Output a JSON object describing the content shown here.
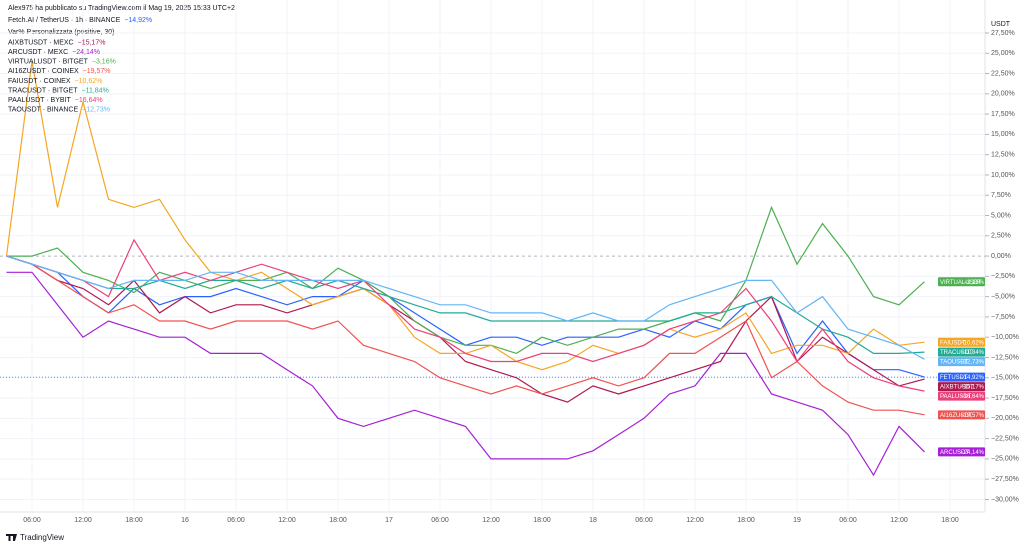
{
  "header": {
    "author": "Alex975 ha pubblicato su TradingView.com il Mag 19, 2025 15:33 UTC+2",
    "indicator": "Var% Personalizzata (positive, 30)",
    "currency": "USDT",
    "brand": "TradingView"
  },
  "chart_data": {
    "type": "line",
    "categories": [
      null,
      "06:00",
      null,
      "12:00",
      null,
      "18:00",
      null,
      "16",
      null,
      "06:00",
      null,
      "12:00",
      null,
      "18:00",
      null,
      "17",
      null,
      "06:00",
      null,
      "12:00",
      null,
      "18:00",
      null,
      "18",
      null,
      "06:00",
      null,
      "12:00",
      null,
      "18:00",
      null,
      "19",
      null,
      "06:00",
      null,
      "12:00",
      null,
      "18:00"
    ],
    "ylim": [
      -31.3,
      29.1
    ],
    "yticks": [
      {
        "value": 27.5,
        "label": "27,50%"
      },
      {
        "value": 25,
        "label": "25,00%"
      },
      {
        "value": 22.5,
        "label": "22,50%"
      },
      {
        "value": 20,
        "label": "20,00%"
      },
      {
        "value": 17.5,
        "label": "17,50%"
      },
      {
        "value": 15,
        "label": "15,00%"
      },
      {
        "value": 12.5,
        "label": "12,50%"
      },
      {
        "value": 10,
        "label": "10,00%"
      },
      {
        "value": 7.5,
        "label": "7,50%"
      },
      {
        "value": 5,
        "label": "5,00%"
      },
      {
        "value": 2.5,
        "label": "2,50%"
      },
      {
        "value": 0,
        "label": "0,00%"
      },
      {
        "value": -2.5,
        "label": "−2,50%"
      },
      {
        "value": -5,
        "label": "−5,00%"
      },
      {
        "value": -7.5,
        "label": "−7,50%"
      },
      {
        "value": -10,
        "label": "−10,00%"
      },
      {
        "value": -12.5,
        "label": "−12,50%"
      },
      {
        "value": -15,
        "label": "−15,00%"
      },
      {
        "value": -17.5,
        "label": "−17,50%"
      },
      {
        "value": -20,
        "label": "−20,00%"
      },
      {
        "value": -22.5,
        "label": "−22,50%"
      },
      {
        "value": -25,
        "label": "−25,00%"
      },
      {
        "value": -27.5,
        "label": "−27,50%"
      },
      {
        "value": -30,
        "label": "−30,00%"
      }
    ],
    "series": [
      {
        "name": "Fetch.AI / TetherUS · 1h · BINANCE",
        "tag": "FETUSDT",
        "color": "#2962ff",
        "values": [
          0,
          -1,
          -2,
          -5,
          -7,
          -4,
          -6,
          -5,
          -5,
          -4,
          -5,
          -6,
          -5,
          -5,
          -3,
          -5,
          -7,
          -9,
          -11,
          -10,
          -10,
          -11,
          -10,
          -10,
          -10,
          -9,
          -10,
          -8,
          -9,
          -6,
          -5,
          -12,
          -8,
          -12,
          -14,
          -14,
          -14.92,
          null
        ],
        "value_labels": [
          null,
          null,
          null,
          null,
          null,
          null,
          null,
          null,
          null,
          null,
          null,
          null,
          null,
          null,
          null,
          null,
          null,
          null,
          null,
          null,
          null,
          null,
          null,
          null,
          null,
          null,
          null,
          null,
          null,
          null,
          null,
          null,
          null,
          null,
          null,
          null,
          "−14,92%",
          null
        ]
      },
      {
        "name": "AIXBTUSDT · MEXC",
        "tag": "AIXBTUSDT",
        "color": "#b0174f",
        "values": [
          0,
          -1,
          -3,
          -4,
          -6,
          -3,
          -7,
          -5,
          -7,
          -6,
          -6,
          -7,
          -6,
          -5,
          -4,
          -6,
          -8,
          -10,
          -13,
          -14,
          -15,
          -17,
          -18,
          -16,
          -17,
          -16,
          -15,
          -14,
          -13,
          -8,
          -5,
          -13,
          -10,
          -12,
          -14,
          -16,
          -15.17,
          null
        ],
        "value_labels": [
          null,
          null,
          null,
          null,
          null,
          null,
          null,
          null,
          null,
          null,
          null,
          null,
          null,
          null,
          null,
          null,
          null,
          null,
          null,
          null,
          null,
          null,
          null,
          null,
          null,
          null,
          null,
          null,
          null,
          null,
          null,
          null,
          null,
          null,
          null,
          null,
          "−15,17%",
          null
        ]
      },
      {
        "name": "ARCUSDT · MEXC",
        "tag": "ARCUSDT",
        "color": "#a61fd6",
        "values": [
          -2,
          -2,
          -6,
          -10,
          -8,
          -9,
          -10,
          -10,
          -12,
          -12,
          -12,
          -14,
          -16,
          -20,
          -21,
          -20,
          -19,
          -20,
          -21,
          -25,
          -25,
          -25,
          -25,
          -24,
          -22,
          -20,
          -17,
          -16,
          -12,
          -12,
          -17,
          -18,
          -19,
          -22,
          -27,
          -21,
          -24.14,
          null
        ],
        "value_labels": [
          null,
          null,
          null,
          null,
          null,
          null,
          null,
          null,
          null,
          null,
          null,
          null,
          null,
          null,
          null,
          null,
          null,
          null,
          null,
          null,
          null,
          null,
          null,
          null,
          null,
          null,
          null,
          null,
          null,
          null,
          null,
          null,
          null,
          null,
          null,
          null,
          "−24,14%",
          null
        ]
      },
      {
        "name": "VIRTUALUSDT · BITGET",
        "tag": "VIRTUALUSDT",
        "color": "#4caf50",
        "values": [
          0,
          0,
          1,
          -2,
          -3,
          -4.5,
          -2,
          -3,
          -4,
          -3,
          -3,
          -2,
          -4,
          -1.5,
          -3,
          -5,
          -8,
          -10,
          -11,
          -11,
          -12,
          -10,
          -11,
          -10,
          -9,
          -9,
          -8,
          -7,
          -8,
          -3,
          6,
          -1,
          4,
          0,
          -5,
          -6,
          -3.16,
          null
        ],
        "value_labels": [
          null,
          null,
          null,
          null,
          null,
          null,
          null,
          null,
          null,
          null,
          null,
          null,
          null,
          null,
          null,
          null,
          null,
          null,
          null,
          null,
          null,
          null,
          null,
          null,
          null,
          null,
          null,
          null,
          null,
          null,
          null,
          null,
          null,
          null,
          null,
          null,
          "−3,16%",
          null
        ]
      },
      {
        "name": "AI16ZUSDT · COINEX",
        "tag": "AI16ZUSDT",
        "color": "#ef5350",
        "values": [
          0,
          -1,
          -3,
          -5,
          -7,
          -6,
          -8,
          -8,
          -9,
          -8,
          -8,
          -8,
          -9,
          -8,
          -11,
          -12,
          -13,
          -15,
          -16,
          -17,
          -16,
          -17,
          -16,
          -15,
          -16,
          -15,
          -12,
          -12,
          -10,
          -8,
          -15,
          -13,
          -16,
          -18,
          -19,
          -19,
          -19.57,
          null
        ],
        "value_labels": [
          null,
          null,
          null,
          null,
          null,
          null,
          null,
          null,
          null,
          null,
          null,
          null,
          null,
          null,
          null,
          null,
          null,
          null,
          null,
          null,
          null,
          null,
          null,
          null,
          null,
          null,
          null,
          null,
          null,
          null,
          null,
          null,
          null,
          null,
          null,
          null,
          "−19,57%",
          null
        ]
      },
      {
        "name": "FAIUSDT · COINEX",
        "tag": "FAIUSDT",
        "color": "#f5a623",
        "values": [
          0,
          24,
          6,
          19,
          7,
          6,
          7,
          2,
          -2,
          -3,
          -2,
          -4,
          -6,
          -5,
          -4,
          -6,
          -10,
          -12,
          -12,
          -11,
          -13,
          -14,
          -13,
          -11,
          -12,
          -11,
          -9,
          -10,
          -9,
          -7,
          -12,
          -11,
          -11,
          -12,
          -9,
          -11,
          -10.62,
          null
        ],
        "value_labels": [
          null,
          null,
          null,
          null,
          null,
          null,
          null,
          null,
          null,
          null,
          null,
          null,
          null,
          null,
          null,
          null,
          null,
          null,
          null,
          null,
          null,
          null,
          null,
          null,
          null,
          null,
          null,
          null,
          null,
          null,
          null,
          null,
          null,
          null,
          null,
          null,
          "−10,62%",
          null
        ]
      },
      {
        "name": "TRACUSDT · BITGET",
        "tag": "TRACUSDT",
        "color": "#22ab94",
        "values": [
          0,
          -1,
          -2,
          -3,
          -4,
          -4,
          -3,
          -4,
          -3,
          -3,
          -4,
          -3,
          -4,
          -3,
          -4,
          -5,
          -6,
          -7,
          -7,
          -8,
          -8,
          -8,
          -8,
          -8,
          -8,
          -8,
          -8,
          -7,
          -7,
          -6,
          -5,
          -7,
          -9,
          -10,
          -12,
          -12,
          -11.84,
          null
        ],
        "value_labels": [
          null,
          null,
          null,
          null,
          null,
          null,
          null,
          null,
          null,
          null,
          null,
          null,
          null,
          null,
          null,
          null,
          null,
          null,
          null,
          null,
          null,
          null,
          null,
          null,
          null,
          null,
          null,
          null,
          null,
          null,
          null,
          null,
          null,
          null,
          null,
          null,
          "−11,84%",
          null
        ]
      },
      {
        "name": "PAALUSDT · BYBIT",
        "tag": "PAALUSDT",
        "color": "#ec407a",
        "values": [
          0,
          -1,
          -2,
          -3,
          -5,
          2,
          -3,
          -2,
          -3,
          -2,
          -1,
          -2,
          -3,
          -4,
          -3,
          -6,
          -9,
          -10,
          -12,
          -13,
          -13,
          -12,
          -12,
          -13,
          -12,
          -11,
          -9,
          -8,
          -7,
          -4,
          -8,
          -13,
          -9,
          -13,
          -15,
          -16,
          -16.64,
          null
        ],
        "value_labels": [
          null,
          null,
          null,
          null,
          null,
          null,
          null,
          null,
          null,
          null,
          null,
          null,
          null,
          null,
          null,
          null,
          null,
          null,
          null,
          null,
          null,
          null,
          null,
          null,
          null,
          null,
          null,
          null,
          null,
          null,
          null,
          null,
          null,
          null,
          null,
          null,
          "−16,64%",
          null
        ]
      },
      {
        "name": "TAOUSDT · BINANCE",
        "tag": "TAOUSDT",
        "color": "#64b5f6",
        "values": [
          0,
          -1,
          -2,
          -3,
          -4,
          -3,
          -3,
          -3,
          -2,
          -2,
          -3,
          -3,
          -3,
          -3,
          -3,
          -4,
          -5,
          -6,
          -6,
          -7,
          -7,
          -7,
          -8,
          -7,
          -8,
          -8,
          -6,
          -5,
          -4,
          -3,
          -3,
          -7,
          -5,
          -9,
          -10,
          -11,
          -12.73,
          null
        ],
        "value_labels": [
          null,
          null,
          null,
          null,
          null,
          null,
          null,
          null,
          null,
          null,
          null,
          null,
          null,
          null,
          null,
          null,
          null,
          null,
          null,
          null,
          null,
          null,
          null,
          null,
          null,
          null,
          null,
          null,
          null,
          null,
          null,
          null,
          null,
          null,
          null,
          null,
          "−12,73%",
          null
        ]
      }
    ]
  }
}
